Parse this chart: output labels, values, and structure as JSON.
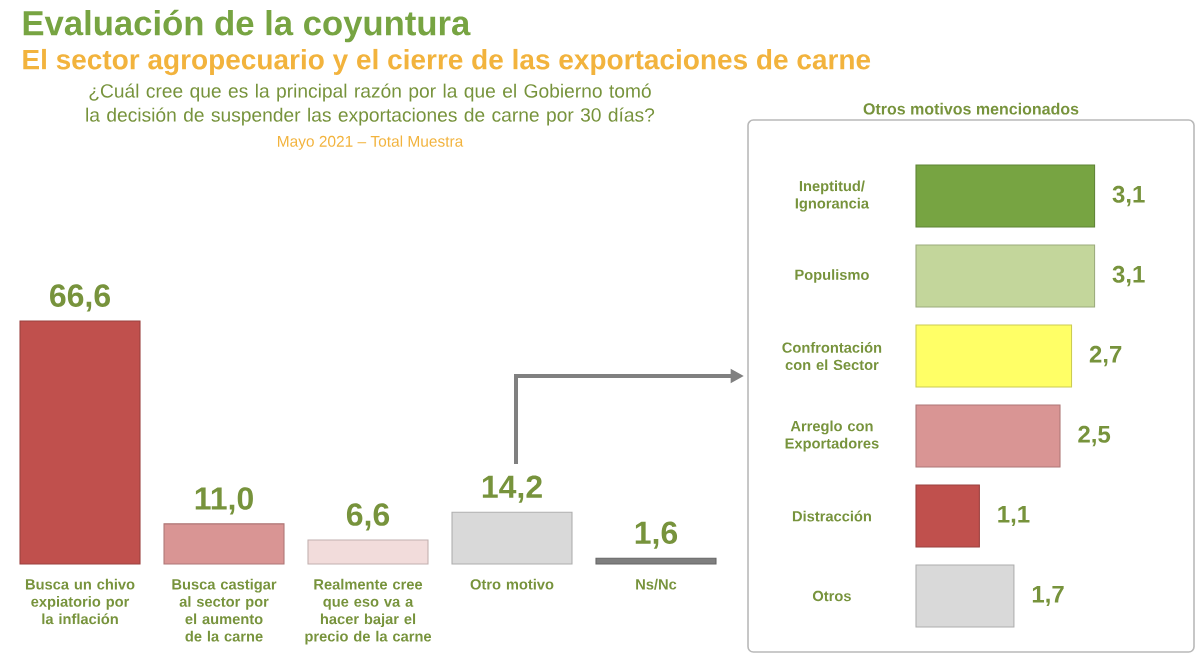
{
  "chart_data": [
    {
      "type": "bar",
      "title": "Evaluación de la coyuntura",
      "subtitle": "El sector agropecuario y el cierre de las exportaciones de carne",
      "annotations": [
        "¿Cuál cree que es la principal razón por la que el Gobierno tomó la decisión de suspender las exportaciones de carne por 30 días?",
        "Mayo 2021 – Total Muestra"
      ],
      "categories": [
        "Busca un chivo expiatorio por la inflación",
        "Busca castigar al sector por el aumento de la carne",
        "Realmente cree que eso va a hacer bajar el precio de la carne",
        "Otro motivo",
        "Ns/Nc"
      ],
      "values": [
        66.6,
        11.0,
        6.6,
        14.2,
        1.6
      ],
      "colors": [
        "#c0504d",
        "#d99594",
        "#f2dcdb",
        "#d9d9d9",
        "#7f7f7f"
      ],
      "value_labels": [
        "66,6",
        "11,0",
        "6,6",
        "14,2",
        "1,6"
      ]
    },
    {
      "type": "bar",
      "orientation": "horizontal",
      "title": "Otros motivos mencionados",
      "categories": [
        "Ineptitud/ Ignorancia",
        "Populismo",
        "Confrontación con el Sector",
        "Arreglo con Exportadores",
        "Distracción",
        "Otros"
      ],
      "values": [
        3.1,
        3.1,
        2.7,
        2.5,
        1.1,
        1.7
      ],
      "colors": [
        "#77a442",
        "#c3d69b",
        "#ffff66",
        "#d99594",
        "#c0504d",
        "#d9d9d9"
      ],
      "value_labels": [
        "3,1",
        "3,1",
        "2,7",
        "2,5",
        "1,1",
        "1,7"
      ]
    }
  ]
}
